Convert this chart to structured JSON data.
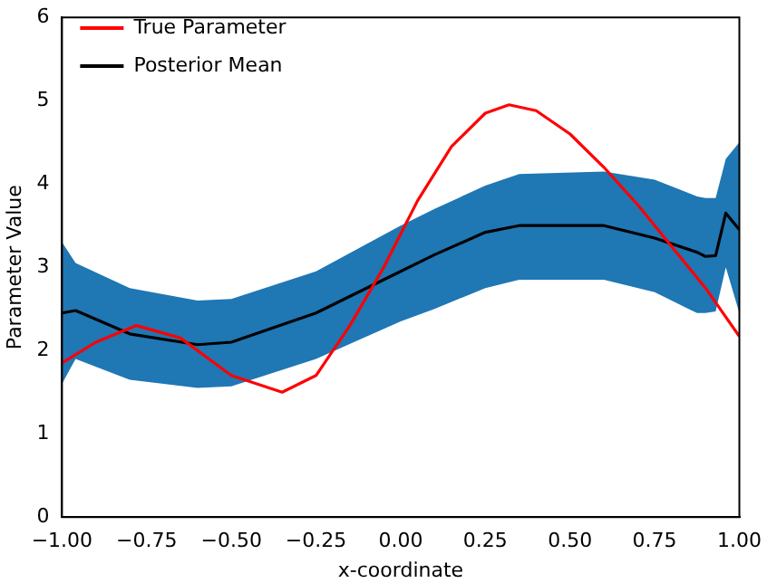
{
  "chart_data": {
    "type": "line",
    "xlabel": "x-coordinate",
    "ylabel": "Parameter Value",
    "xlim": [
      -1,
      1
    ],
    "ylim": [
      0,
      6
    ],
    "xticks": [
      {
        "value": -1,
        "label": "−1.00"
      },
      {
        "value": -0.75,
        "label": "−0.75"
      },
      {
        "value": -0.5,
        "label": "−0.50"
      },
      {
        "value": -0.25,
        "label": "−0.25"
      },
      {
        "value": 0,
        "label": "0.00"
      },
      {
        "value": 0.25,
        "label": "0.25"
      },
      {
        "value": 0.5,
        "label": "0.50"
      },
      {
        "value": 0.75,
        "label": "0.75"
      },
      {
        "value": 1,
        "label": "1.00"
      }
    ],
    "yticks": [
      0,
      1,
      2,
      3,
      4,
      5,
      6
    ],
    "grid": false,
    "legend": "top left",
    "marker": "none",
    "line_style": "solid",
    "series": [
      {
        "name": "True Parameter",
        "color": "#ff0000",
        "x": [
          -1,
          -0.9,
          -0.78,
          -0.65,
          -0.5,
          -0.35,
          -0.25,
          -0.15,
          -0.05,
          0.05,
          0.15,
          0.25,
          0.32,
          0.4,
          0.5,
          0.6,
          0.7,
          0.8,
          0.9,
          1
        ],
        "values": [
          1.85,
          2.1,
          2.3,
          2.15,
          1.7,
          1.5,
          1.7,
          2.3,
          3.0,
          3.8,
          4.45,
          4.85,
          4.95,
          4.88,
          4.6,
          4.2,
          3.75,
          3.25,
          2.75,
          2.17
        ]
      },
      {
        "name": "Posterior Mean",
        "color": "#000000",
        "x": [
          -1,
          -0.96,
          -0.8,
          -0.6,
          -0.5,
          -0.25,
          0,
          0.1,
          0.25,
          0.35,
          0.6,
          0.75,
          0.875,
          0.9,
          0.93,
          0.96,
          1
        ],
        "values": [
          2.45,
          2.48,
          2.2,
          2.07,
          2.1,
          2.45,
          2.95,
          3.15,
          3.42,
          3.5,
          3.5,
          3.35,
          3.18,
          3.13,
          3.14,
          3.65,
          3.45
        ],
        "lower": [
          1.6,
          1.9,
          1.65,
          1.55,
          1.57,
          1.9,
          2.35,
          2.5,
          2.75,
          2.85,
          2.85,
          2.7,
          2.45,
          2.45,
          2.47,
          3.0,
          2.45
        ],
        "upper": [
          3.3,
          3.05,
          2.75,
          2.6,
          2.62,
          2.95,
          3.5,
          3.7,
          3.98,
          4.12,
          4.15,
          4.05,
          3.85,
          3.83,
          3.83,
          4.3,
          4.5
        ]
      }
    ]
  }
}
